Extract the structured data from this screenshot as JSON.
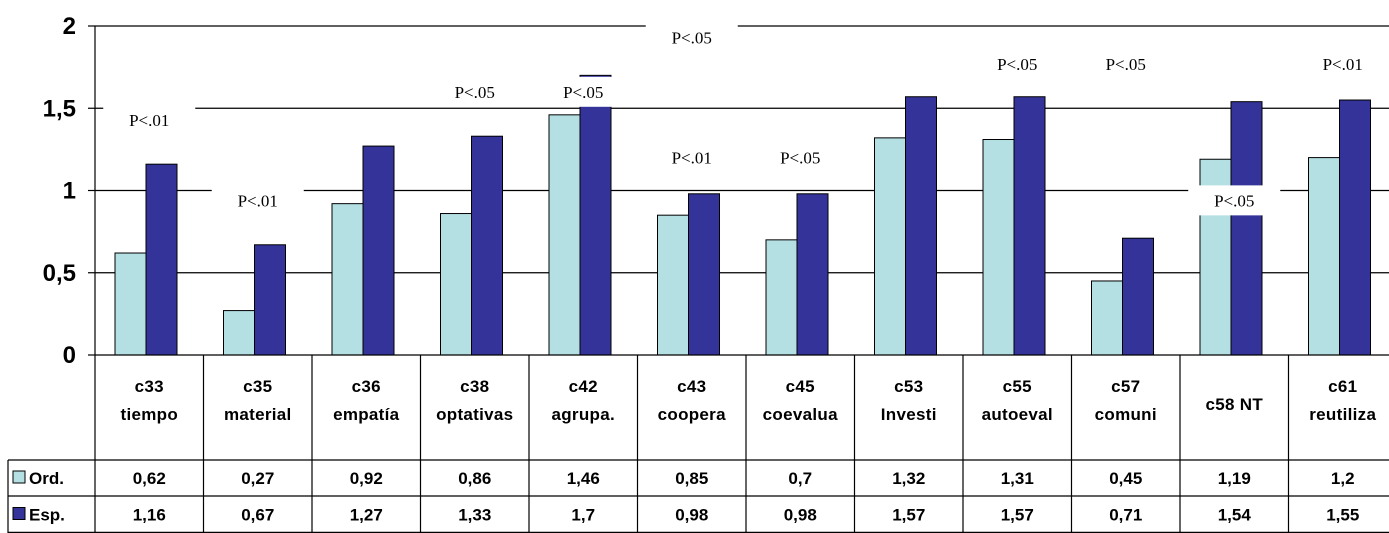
{
  "chart_data": {
    "type": "bar",
    "categories": [
      [
        "c33",
        "tiempo"
      ],
      [
        "c35",
        "material"
      ],
      [
        "c36",
        "empatía"
      ],
      [
        "c38",
        "optativas"
      ],
      [
        "c42",
        "agrupa."
      ],
      [
        "c43",
        "coopera"
      ],
      [
        "c45",
        "coevalua"
      ],
      [
        "c53",
        "Investi"
      ],
      [
        "c55",
        "autoeval"
      ],
      [
        "c57",
        "comuni"
      ],
      [
        "c58 NT"
      ],
      [
        "c61",
        "reutiliza"
      ]
    ],
    "series": [
      {
        "name": "Ord.",
        "color": "#b4dfe3",
        "values": [
          0.62,
          0.27,
          0.92,
          0.86,
          1.46,
          0.85,
          0.7,
          1.32,
          1.31,
          0.45,
          1.19,
          1.2
        ],
        "labels": [
          "0,62",
          "0,27",
          "0,92",
          "0,86",
          "1,46",
          "0,85",
          "0,7",
          "1,32",
          "1,31",
          "0,45",
          "1,19",
          "1,2"
        ]
      },
      {
        "name": "Esp.",
        "color": "#333399",
        "values": [
          1.16,
          0.67,
          1.27,
          1.33,
          1.7,
          0.98,
          0.98,
          1.57,
          1.57,
          0.71,
          1.54,
          1.55
        ],
        "labels": [
          "1,16",
          "0,67",
          "1,27",
          "1,33",
          "1,7",
          "0,98",
          "0,98",
          "1,57",
          "1,57",
          "0,71",
          "1,54",
          "1,55"
        ]
      }
    ],
    "ylim": [
      0,
      2
    ],
    "yticks": [
      0,
      0.5,
      1,
      1.5,
      2
    ],
    "ytick_labels": [
      "0",
      "0,5",
      "1",
      "1,5",
      "2"
    ],
    "grid": true,
    "legend": "data-table-left",
    "annotations": [
      {
        "text": "P<.01",
        "category": 0,
        "y": 1.43
      },
      {
        "text": "P<.01",
        "category": 1,
        "y": 0.94
      },
      {
        "text": "P<.05",
        "category": 3,
        "y": 1.6
      },
      {
        "text": "P<.05",
        "category": 4,
        "y": 1.6
      },
      {
        "text": "P<.05",
        "category": 5,
        "y": 1.93
      },
      {
        "text": "P<.01",
        "category": 5,
        "y": 1.2
      },
      {
        "text": "P<.05",
        "category": 6,
        "y": 1.2
      },
      {
        "text": "P<.05",
        "category": 8,
        "y": 1.77
      },
      {
        "text": "P<.05",
        "category": 9,
        "y": 1.77
      },
      {
        "text": "P<.05",
        "category": 10,
        "y": 0.94
      },
      {
        "text": "P<.01",
        "category": 11,
        "y": 1.77
      },
      {
        "text": "P<.01",
        "category": 11.9,
        "y": 1.77
      }
    ]
  }
}
